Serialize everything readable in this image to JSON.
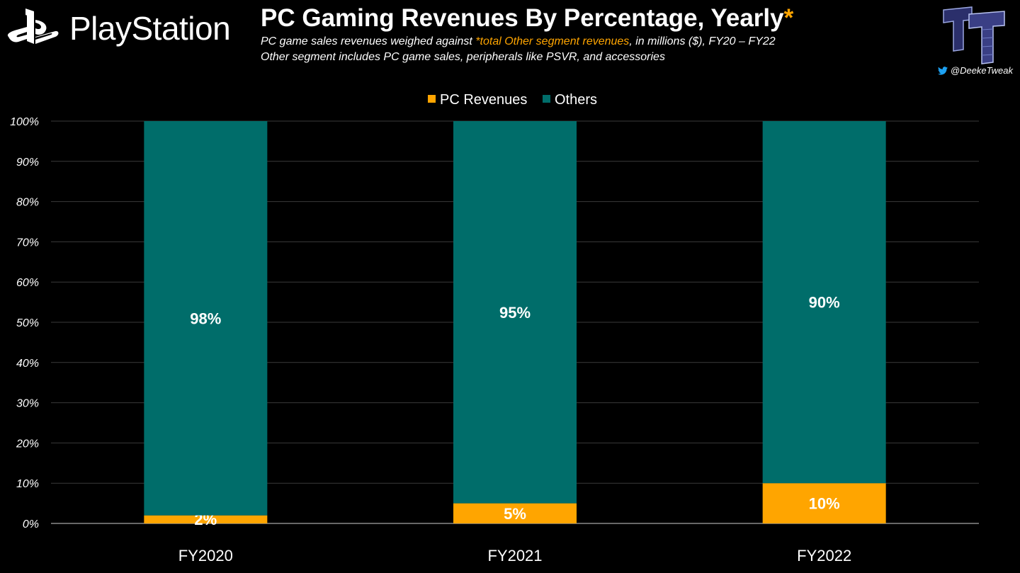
{
  "brand": {
    "name": "PlayStation"
  },
  "header": {
    "title": "PC Gaming Revenues By Percentage, Yearly",
    "title_asterisk": "*",
    "subtitle_line1_start": "PC game sales revenues weighed against ",
    "subtitle_line1_highlight": "*total Other segment revenues",
    "subtitle_line1_end": ", in millions ($), FY20 – FY22",
    "subtitle_line2": "Other segment includes PC game sales, peripherals like PSVR, and accessories"
  },
  "credit": {
    "handle": "@DeekeTweak",
    "icon": "twitter-icon"
  },
  "colors": {
    "pc": "#FFA500",
    "others": "#006D6A",
    "highlight": "#FFA500",
    "gridline": "#3a3a3a",
    "axis": "#8a8a8a"
  },
  "chart_data": {
    "type": "bar",
    "stacked": true,
    "categories": [
      "FY2020",
      "FY2021",
      "FY2022"
    ],
    "series": [
      {
        "name": "PC Revenues",
        "values": [
          2,
          5,
          10
        ],
        "labels": [
          "2%",
          "5%",
          "10%"
        ]
      },
      {
        "name": "Others",
        "values": [
          98,
          95,
          90
        ],
        "labels": [
          "98%",
          "95%",
          "90%"
        ]
      }
    ],
    "title": "PC Gaming Revenues By Percentage, Yearly",
    "xlabel": "",
    "ylabel": "",
    "ylim": [
      0,
      100
    ],
    "yticks": [
      0,
      10,
      20,
      30,
      40,
      50,
      60,
      70,
      80,
      90,
      100
    ],
    "ytick_labels": [
      "0%",
      "10%",
      "20%",
      "30%",
      "40%",
      "50%",
      "60%",
      "70%",
      "80%",
      "90%",
      "100%"
    ],
    "grid": true,
    "legend_position": "top-center"
  }
}
